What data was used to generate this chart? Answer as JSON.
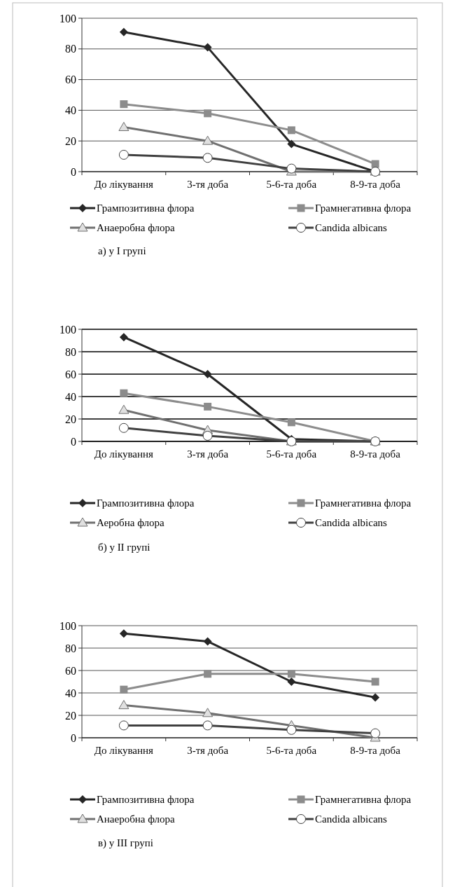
{
  "chart_data": [
    {
      "type": "line",
      "categories": [
        "До лікування",
        "3-тя доба",
        "5-6-та доба",
        "8-9-та доба"
      ],
      "ylim": [
        0,
        100
      ],
      "yticks": [
        0,
        20,
        40,
        60,
        80,
        100
      ],
      "grid": "y",
      "legend": "bottom",
      "annotations": [
        "а) у І групі"
      ],
      "series": [
        {
          "name": "Грампозитивна флора",
          "color": "#262626",
          "marker": "diamond",
          "values": [
            91,
            81,
            18,
            0
          ]
        },
        {
          "name": "Грамнегативна флора",
          "color": "#8c8c8c",
          "marker": "square",
          "values": [
            44,
            38,
            27,
            5
          ]
        },
        {
          "name": "Анаеробна флора",
          "color": "#707070",
          "marker": "triangle",
          "values": [
            29,
            20,
            0,
            0
          ]
        },
        {
          "name": "Candida albicans",
          "color": "#404040",
          "marker": "circle",
          "values": [
            11,
            9,
            2,
            0
          ]
        }
      ]
    },
    {
      "type": "line",
      "categories": [
        "До лікування",
        "3-тя доба",
        "5-6-та доба",
        "8-9-та доба"
      ],
      "ylim": [
        0,
        100
      ],
      "yticks": [
        0,
        20,
        40,
        60,
        80,
        100
      ],
      "grid": "y",
      "legend": "bottom",
      "annotations": [
        "б) у ІІ групі"
      ],
      "series": [
        {
          "name": "Грампозитивна флора",
          "color": "#262626",
          "marker": "diamond",
          "values": [
            93,
            60,
            2,
            0
          ]
        },
        {
          "name": "Грамнегативна флора",
          "color": "#8c8c8c",
          "marker": "square",
          "values": [
            43,
            31,
            17,
            0
          ]
        },
        {
          "name": "Аеробна флора",
          "color": "#707070",
          "marker": "triangle",
          "values": [
            28,
            10,
            0,
            0
          ]
        },
        {
          "name": "Candida albicans",
          "color": "#404040",
          "marker": "circle",
          "values": [
            12,
            5,
            0,
            0
          ]
        }
      ]
    },
    {
      "type": "line",
      "categories": [
        "До лікування",
        "3-тя доба",
        "5-6-та доба",
        "8-9-та доба"
      ],
      "ylim": [
        0,
        100
      ],
      "yticks": [
        0,
        20,
        40,
        60,
        80,
        100
      ],
      "grid": "y",
      "legend": "bottom",
      "annotations": [
        "в) у ІІІ групі"
      ],
      "series": [
        {
          "name": "Грампозитивна флора",
          "color": "#262626",
          "marker": "diamond",
          "values": [
            93,
            86,
            50,
            36
          ]
        },
        {
          "name": "Грамнегативна флора",
          "color": "#8c8c8c",
          "marker": "square",
          "values": [
            43,
            57,
            57,
            50
          ]
        },
        {
          "name": "Анаеробна флора",
          "color": "#707070",
          "marker": "triangle",
          "values": [
            29,
            22,
            11,
            0
          ]
        },
        {
          "name": "Candida albicans",
          "color": "#404040",
          "marker": "circle",
          "values": [
            11,
            11,
            7,
            4
          ]
        }
      ]
    }
  ]
}
